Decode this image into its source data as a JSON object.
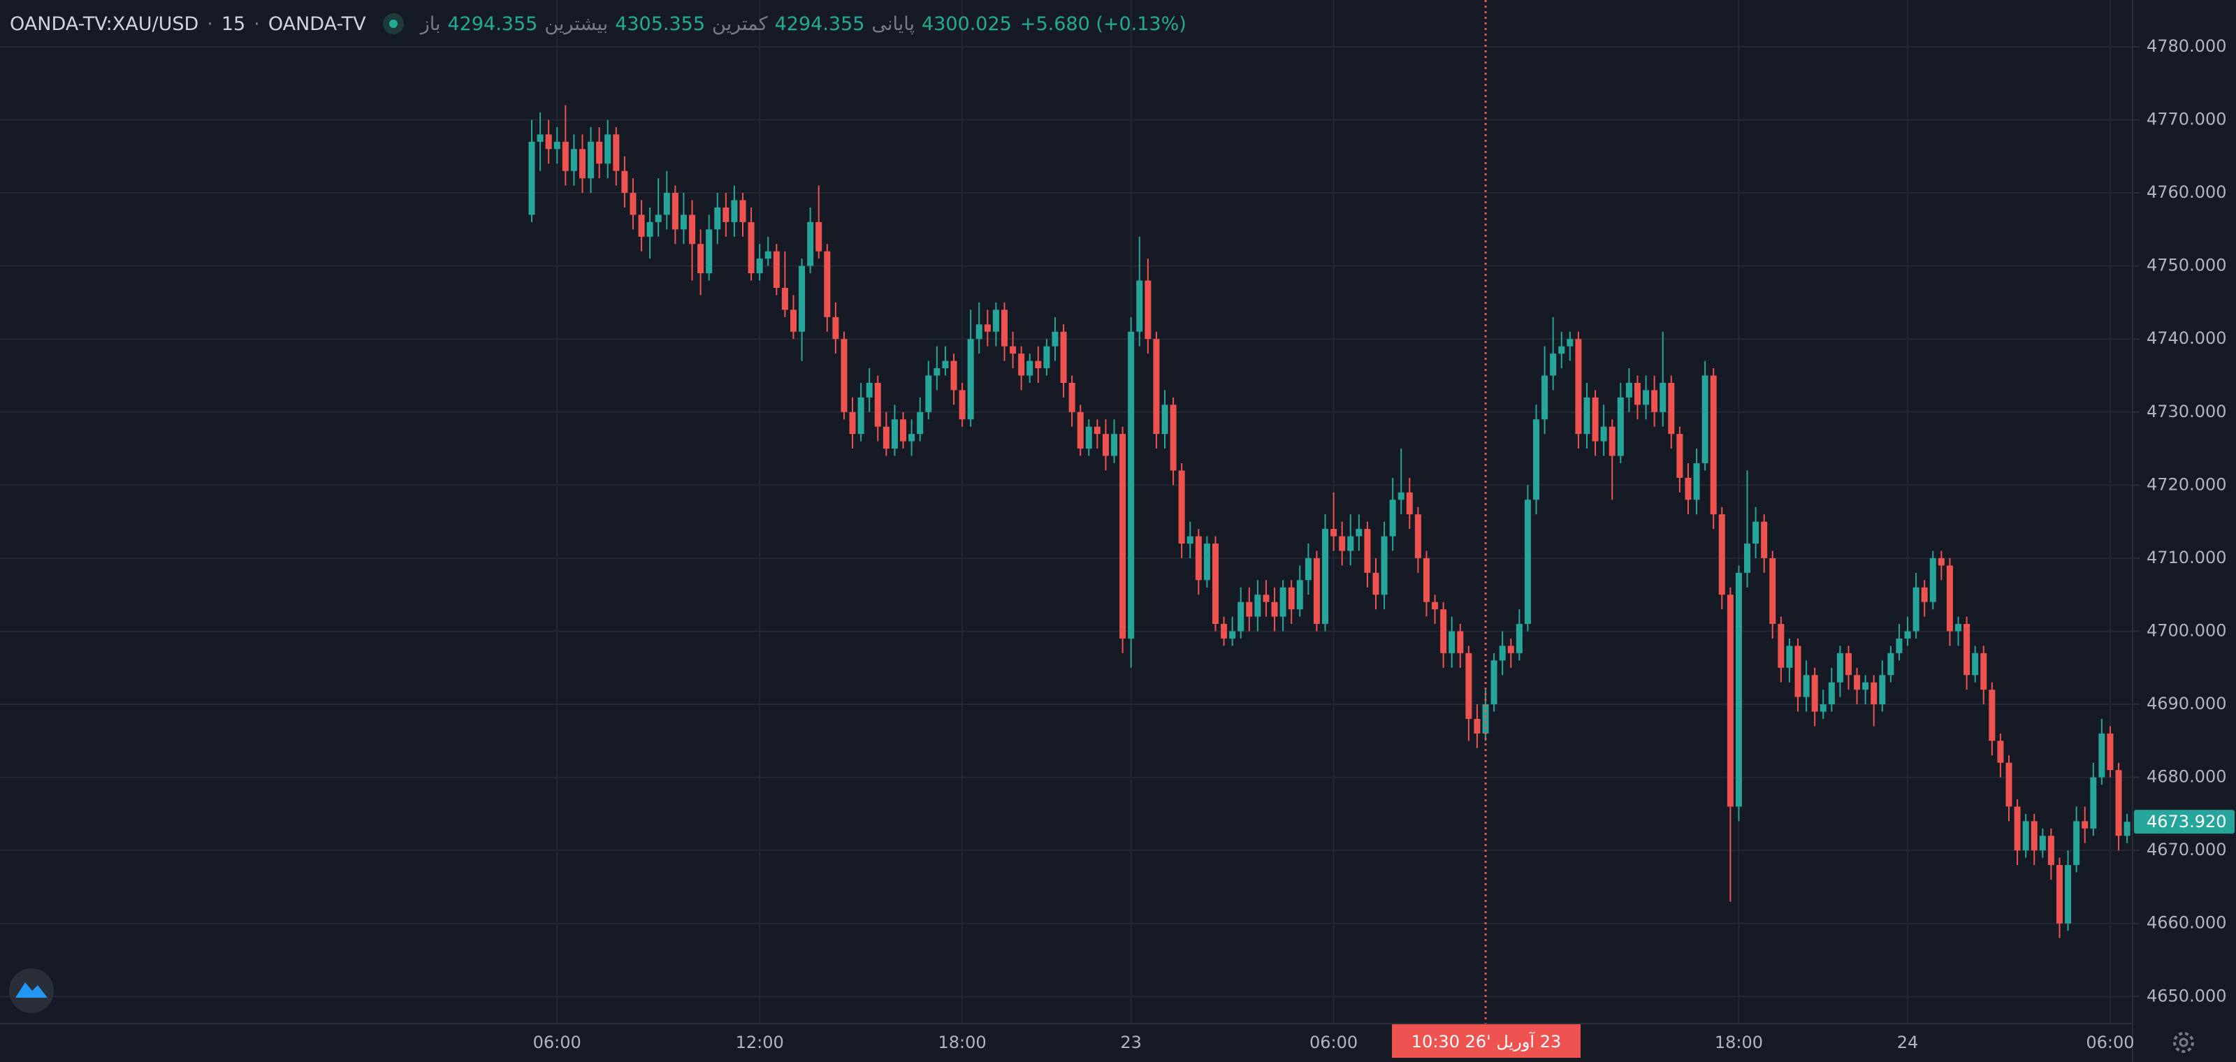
{
  "chart_data": {
    "type": "candlestick",
    "header": {
      "symbol": "OANDA-TV:XAU/USD",
      "interval": "15",
      "exchange": "OANDA-TV",
      "ohlc": [
        {
          "label": "باز",
          "value": "4294.355"
        },
        {
          "label": "بیشترین",
          "value": "4305.355"
        },
        {
          "label": "کمترین",
          "value": "4294.355"
        },
        {
          "label": "پایانی",
          "value": "4300.025"
        }
      ],
      "change": "+5.680 (+0.13%)"
    },
    "up_color": "#26a69a",
    "down_color": "#ef5350",
    "grid": true,
    "ylim": [
      4646.3,
      4786.4
    ],
    "yticks": [
      {
        "value": 4650,
        "label": "4650.000"
      },
      {
        "value": 4660,
        "label": "4660.000"
      },
      {
        "value": 4670,
        "label": "4670.000"
      },
      {
        "value": 4680,
        "label": "4680.000"
      },
      {
        "value": 4690,
        "label": "4690.000"
      },
      {
        "value": 4700,
        "label": "4700.000"
      },
      {
        "value": 4710,
        "label": "4710.000"
      },
      {
        "value": 4720,
        "label": "4720.000"
      },
      {
        "value": 4730,
        "label": "4730.000"
      },
      {
        "value": 4740,
        "label": "4740.000"
      },
      {
        "value": 4750,
        "label": "4750.000"
      },
      {
        "value": 4760,
        "label": "4760.000"
      },
      {
        "value": 4770,
        "label": "4770.000"
      },
      {
        "value": 4780,
        "label": "4780.000"
      }
    ],
    "last_price": {
      "value": 4673.92,
      "label": "4673.920"
    },
    "categories": [
      null,
      null,
      null,
      "06:00",
      null,
      null,
      null,
      null,
      null,
      null,
      null,
      null,
      null,
      null,
      null,
      null,
      null,
      null,
      null,
      null,
      null,
      null,
      null,
      null,
      null,
      null,
      null,
      "12:00",
      null,
      null,
      null,
      null,
      null,
      null,
      null,
      null,
      null,
      null,
      null,
      null,
      null,
      null,
      null,
      null,
      null,
      null,
      null,
      null,
      null,
      null,
      null,
      "18:00",
      null,
      null,
      null,
      null,
      null,
      null,
      null,
      null,
      null,
      null,
      null,
      null,
      null,
      null,
      null,
      null,
      null,
      null,
      null,
      "23",
      null,
      null,
      null,
      null,
      null,
      null,
      null,
      null,
      null,
      null,
      null,
      null,
      null,
      null,
      null,
      null,
      null,
      null,
      null,
      null,
      null,
      null,
      null,
      "06:00",
      null,
      null,
      null,
      null,
      null,
      null,
      null,
      null,
      null,
      null,
      null,
      null,
      null,
      null,
      null,
      null,
      null,
      {
        "label": "23 آوریل '26  10:30",
        "crosshair": true
      },
      null,
      null,
      null,
      null,
      null,
      null,
      null,
      null,
      null,
      null,
      null,
      null,
      null,
      null,
      null,
      null,
      null,
      null,
      null,
      null,
      null,
      null,
      null,
      null,
      null,
      null,
      null,
      null,
      null,
      "18:00",
      null,
      null,
      null,
      null,
      null,
      null,
      null,
      null,
      null,
      null,
      null,
      null,
      null,
      null,
      null,
      null,
      null,
      null,
      null,
      "24",
      null,
      null,
      null,
      null,
      null,
      null,
      null,
      null,
      null,
      null,
      null,
      null,
      null,
      null,
      null,
      null,
      null,
      null,
      null,
      null,
      null,
      null,
      null,
      "06:00",
      null,
      null
    ],
    "open": [
      4757,
      4767,
      4768,
      4766,
      4767,
      4763,
      4766,
      4762,
      4767,
      4764,
      4768,
      4763,
      4760,
      4757,
      4754,
      4756,
      4757,
      4760,
      4755,
      4757,
      4753,
      4749,
      4755,
      4758,
      4756,
      4759,
      4756,
      4749,
      4751,
      4752,
      4747,
      4744,
      4741,
      4750,
      4756,
      4752,
      4743,
      4740,
      4730,
      4727,
      4732,
      4734,
      4728,
      4725,
      4729,
      4726,
      4727,
      4730,
      4735,
      4736,
      4737,
      4733,
      4729,
      4740,
      4742,
      4741,
      4744,
      4739,
      4738,
      4735,
      4737,
      4736,
      4739,
      4741,
      4734,
      4730,
      4725,
      4728,
      4727,
      4724,
      4727,
      4699,
      4741,
      4748,
      4740,
      4727,
      4731,
      4722,
      4712,
      4713,
      4707,
      4712,
      4701,
      4699,
      4700,
      4704,
      4702,
      4705,
      4704,
      4702,
      4706,
      4703,
      4707,
      4710,
      4701,
      4714,
      4713,
      4711,
      4713,
      4714,
      4708,
      4705,
      4713,
      4718,
      4719,
      4716,
      4710,
      4704,
      4703,
      4697,
      4700,
      4697,
      4688,
      4686,
      4690,
      4696,
      4698,
      4697,
      4701,
      4718,
      4729,
      4735,
      4738,
      4739,
      4740,
      4727,
      4732,
      4726,
      4728,
      4724,
      4732,
      4734,
      4731,
      4733,
      4730,
      4734,
      4727,
      4721,
      4718,
      4723,
      4735,
      4716,
      4705,
      4676,
      4708,
      4712,
      4715,
      4710,
      4701,
      4695,
      4698,
      4691,
      4694,
      4689,
      4690,
      4693,
      4697,
      4694,
      4692,
      4693,
      4690,
      4694,
      4697,
      4699,
      4700,
      4706,
      4704,
      4710,
      4709,
      4700,
      4701,
      4694,
      4697,
      4692,
      4685,
      4682,
      4676,
      4670,
      4674,
      4670,
      4672,
      4668,
      4660,
      4668,
      4674,
      4673,
      4680,
      4686,
      4681,
      4672
    ],
    "high": [
      4770,
      4771,
      4770,
      4769,
      4772,
      4768,
      4768,
      4769,
      4769,
      4770,
      4769,
      4765,
      4762,
      4759,
      4758,
      4762,
      4763,
      4761,
      4760,
      4759,
      4755,
      4757,
      4760,
      4760,
      4761,
      4760,
      4758,
      4753,
      4754,
      4753,
      4752,
      4746,
      4751,
      4758,
      4761,
      4753,
      4745,
      4741,
      4732,
      4734,
      4736,
      4735,
      4730,
      4731,
      4730,
      4729,
      4732,
      4737,
      4739,
      4739,
      4738,
      4734,
      4744,
      4745,
      4744,
      4745,
      4745,
      4741,
      4739,
      4738,
      4739,
      4740,
      4743,
      4742,
      4735,
      4731,
      4729,
      4729,
      4729,
      4729,
      4728,
      4743,
      4754,
      4751,
      4741,
      4733,
      4732,
      4723,
      4715,
      4714,
      4713,
      4713,
      4702,
      4702,
      4706,
      4706,
      4707,
      4707,
      4706,
      4707,
      4707,
      4709,
      4712,
      4711,
      4716,
      4719,
      4715,
      4716,
      4716,
      4715,
      4710,
      4715,
      4721,
      4725,
      4721,
      4717,
      4711,
      4705,
      4704,
      4702,
      4701,
      4698,
      4690,
      4692,
      4697,
      4700,
      4699,
      4703,
      4720,
      4731,
      4739,
      4743,
      4741,
      4741,
      4741,
      4734,
      4733,
      4731,
      4729,
      4734,
      4736,
      4735,
      4735,
      4735,
      4741,
      4735,
      4728,
      4723,
      4725,
      4737,
      4736,
      4717,
      4706,
      4709,
      4722,
      4717,
      4716,
      4711,
      4702,
      4699,
      4699,
      4696,
      4695,
      4692,
      4695,
      4698,
      4698,
      4695,
      4694,
      4694,
      4696,
      4698,
      4701,
      4702,
      4708,
      4707,
      4711,
      4711,
      4710,
      4702,
      4702,
      4698,
      4698,
      4693,
      4686,
      4683,
      4677,
      4675,
      4675,
      4673,
      4673,
      4669,
      4670,
      4676,
      4676,
      4682,
      4688,
      4687,
      4682,
      4675
    ],
    "low": [
      4756,
      4763,
      4764,
      4764,
      4761,
      4761,
      4760,
      4760,
      4762,
      4762,
      4761,
      4758,
      4755,
      4752,
      4751,
      4754,
      4755,
      4753,
      4753,
      4748,
      4746,
      4748,
      4753,
      4754,
      4754,
      4754,
      4748,
      4748,
      4750,
      4746,
      4743,
      4740,
      4737,
      4749,
      4751,
      4741,
      4738,
      4729,
      4725,
      4726,
      4730,
      4726,
      4724,
      4724,
      4725,
      4724,
      4726,
      4729,
      4733,
      4735,
      4731,
      4728,
      4728,
      4738,
      4739,
      4739,
      4737,
      4736,
      4733,
      4734,
      4734,
      4735,
      4737,
      4732,
      4728,
      4724,
      4724,
      4725,
      4722,
      4723,
      4697,
      4695,
      4739,
      4738,
      4725,
      4725,
      4720,
      4710,
      4710,
      4705,
      4706,
      4700,
      4698,
      4698,
      4699,
      4700,
      4700,
      4702,
      4700,
      4700,
      4701,
      4702,
      4705,
      4700,
      4700,
      4711,
      4709,
      4709,
      4711,
      4706,
      4703,
      4703,
      4711,
      4716,
      4714,
      4708,
      4702,
      4701,
      4695,
      4695,
      4695,
      4685,
      4684,
      4685,
      4689,
      4694,
      4695,
      4696,
      4700,
      4716,
      4727,
      4733,
      4736,
      4737,
      4725,
      4725,
      4724,
      4724,
      4718,
      4723,
      4730,
      4729,
      4729,
      4728,
      4728,
      4725,
      4719,
      4716,
      4716,
      4722,
      4714,
      4703,
      4663,
      4674,
      4706,
      4710,
      4708,
      4699,
      4693,
      4693,
      4689,
      4689,
      4687,
      4688,
      4689,
      4691,
      4692,
      4690,
      4690,
      4687,
      4689,
      4693,
      4696,
      4698,
      4699,
      4702,
      4703,
      4707,
      4698,
      4698,
      4692,
      4693,
      4690,
      4683,
      4680,
      4674,
      4668,
      4669,
      4668,
      4669,
      4666,
      4658,
      4659,
      4667,
      4671,
      4672,
      4679,
      4680,
      4670,
      4671
    ],
    "close": [
      4767,
      4768,
      4766,
      4767,
      4763,
      4766,
      4762,
      4767,
      4764,
      4768,
      4763,
      4760,
      4757,
      4754,
      4756,
      4757,
      4760,
      4755,
      4757,
      4753,
      4749,
      4755,
      4758,
      4756,
      4759,
      4756,
      4749,
      4751,
      4752,
      4747,
      4744,
      4741,
      4750,
      4756,
      4752,
      4743,
      4740,
      4730,
      4727,
      4732,
      4734,
      4728,
      4725,
      4729,
      4726,
      4727,
      4730,
      4735,
      4736,
      4737,
      4733,
      4729,
      4740,
      4742,
      4741,
      4744,
      4739,
      4738,
      4735,
      4737,
      4736,
      4739,
      4741,
      4734,
      4730,
      4725,
      4728,
      4727,
      4724,
      4727,
      4699,
      4741,
      4748,
      4740,
      4727,
      4731,
      4722,
      4712,
      4713,
      4707,
      4712,
      4701,
      4699,
      4700,
      4704,
      4702,
      4705,
      4704,
      4702,
      4706,
      4703,
      4707,
      4710,
      4701,
      4714,
      4713,
      4711,
      4713,
      4714,
      4708,
      4705,
      4713,
      4718,
      4719,
      4716,
      4710,
      4704,
      4703,
      4697,
      4700,
      4697,
      4688,
      4686,
      4690,
      4696,
      4698,
      4697,
      4701,
      4718,
      4729,
      4735,
      4738,
      4739,
      4740,
      4727,
      4732,
      4726,
      4728,
      4724,
      4732,
      4734,
      4731,
      4733,
      4730,
      4734,
      4727,
      4721,
      4718,
      4723,
      4735,
      4716,
      4705,
      4676,
      4708,
      4712,
      4715,
      4710,
      4701,
      4695,
      4698,
      4691,
      4694,
      4689,
      4690,
      4693,
      4697,
      4694,
      4692,
      4693,
      4690,
      4694,
      4697,
      4699,
      4700,
      4706,
      4704,
      4710,
      4709,
      4700,
      4701,
      4694,
      4697,
      4692,
      4685,
      4682,
      4676,
      4670,
      4674,
      4670,
      4672,
      4668,
      4660,
      4668,
      4674,
      4673,
      4680,
      4686,
      4681,
      4672,
      4673.92
    ]
  }
}
